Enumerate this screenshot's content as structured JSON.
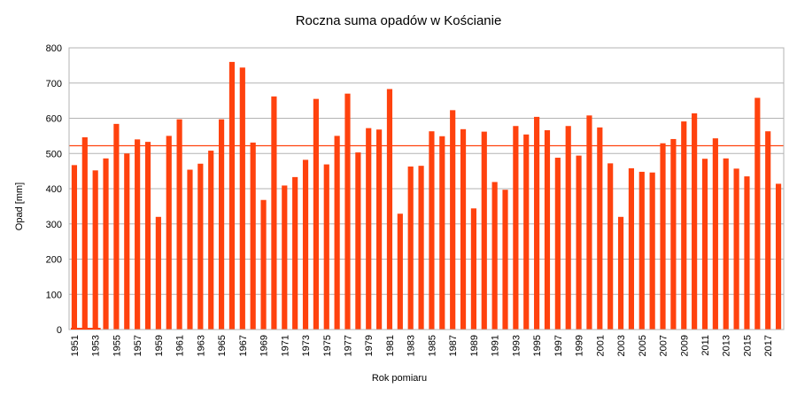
{
  "chart_data": {
    "type": "bar",
    "title": "Roczna suma opadów w Kościanie",
    "xlabel": "Rok pomiaru",
    "ylabel": "Opad [mm]",
    "ylim": [
      0,
      800
    ],
    "yticks": [
      0,
      100,
      200,
      300,
      400,
      500,
      600,
      700,
      800
    ],
    "grid": true,
    "categories": [
      "1951",
      "1952",
      "1953",
      "1954",
      "1955",
      "1956",
      "1957",
      "1958",
      "1959",
      "1960",
      "1961",
      "1962",
      "1963",
      "1964",
      "1965",
      "1966",
      "1967",
      "1968",
      "1969",
      "1970",
      "1971",
      "1972",
      "1973",
      "1974",
      "1975",
      "1976",
      "1977",
      "1978",
      "1979",
      "1980",
      "1981",
      "1982",
      "1983",
      "1984",
      "1985",
      "1986",
      "1987",
      "1988",
      "1989",
      "1990",
      "1991",
      "1992",
      "1993",
      "1994",
      "1995",
      "1996",
      "1997",
      "1998",
      "1999",
      "2000",
      "2001",
      "2002",
      "2003",
      "2004",
      "2005",
      "2006",
      "2007",
      "2008",
      "2009",
      "2010",
      "2011",
      "2012",
      "2013",
      "2014",
      "2015",
      "2016",
      "2017",
      "2018"
    ],
    "shown_category_labels": [
      "1951",
      "1953",
      "1955",
      "1957",
      "1959",
      "1961",
      "1963",
      "1965",
      "1967",
      "1969",
      "1971",
      "1973",
      "1975",
      "1977",
      "1979",
      "1981",
      "1983",
      "1985",
      "1987",
      "1989",
      "1991",
      "1993",
      "1995",
      "1997",
      "1999",
      "2001",
      "2003",
      "2005",
      "2007",
      "2009",
      "2011",
      "2013",
      "2015",
      "2017"
    ],
    "values": [
      467,
      546,
      452,
      486,
      584,
      500,
      540,
      533,
      320,
      550,
      597,
      454,
      471,
      508,
      597,
      760,
      744,
      531,
      368,
      662,
      409,
      433,
      482,
      655,
      469,
      550,
      670,
      503,
      572,
      568,
      683,
      329,
      463,
      465,
      563,
      549,
      623,
      569,
      344,
      562,
      419,
      397,
      578,
      554,
      604,
      566,
      488,
      578,
      494,
      608,
      574,
      472,
      320,
      458,
      448,
      446,
      529,
      541,
      591,
      614,
      485,
      543,
      486,
      457,
      435,
      658,
      563,
      414
    ],
    "reference_line": 522,
    "colors": {
      "bar": "#ff420e",
      "reference_line": "#ff420e",
      "grid": "#b3b3b3",
      "axis": "#b3b3b3"
    }
  }
}
